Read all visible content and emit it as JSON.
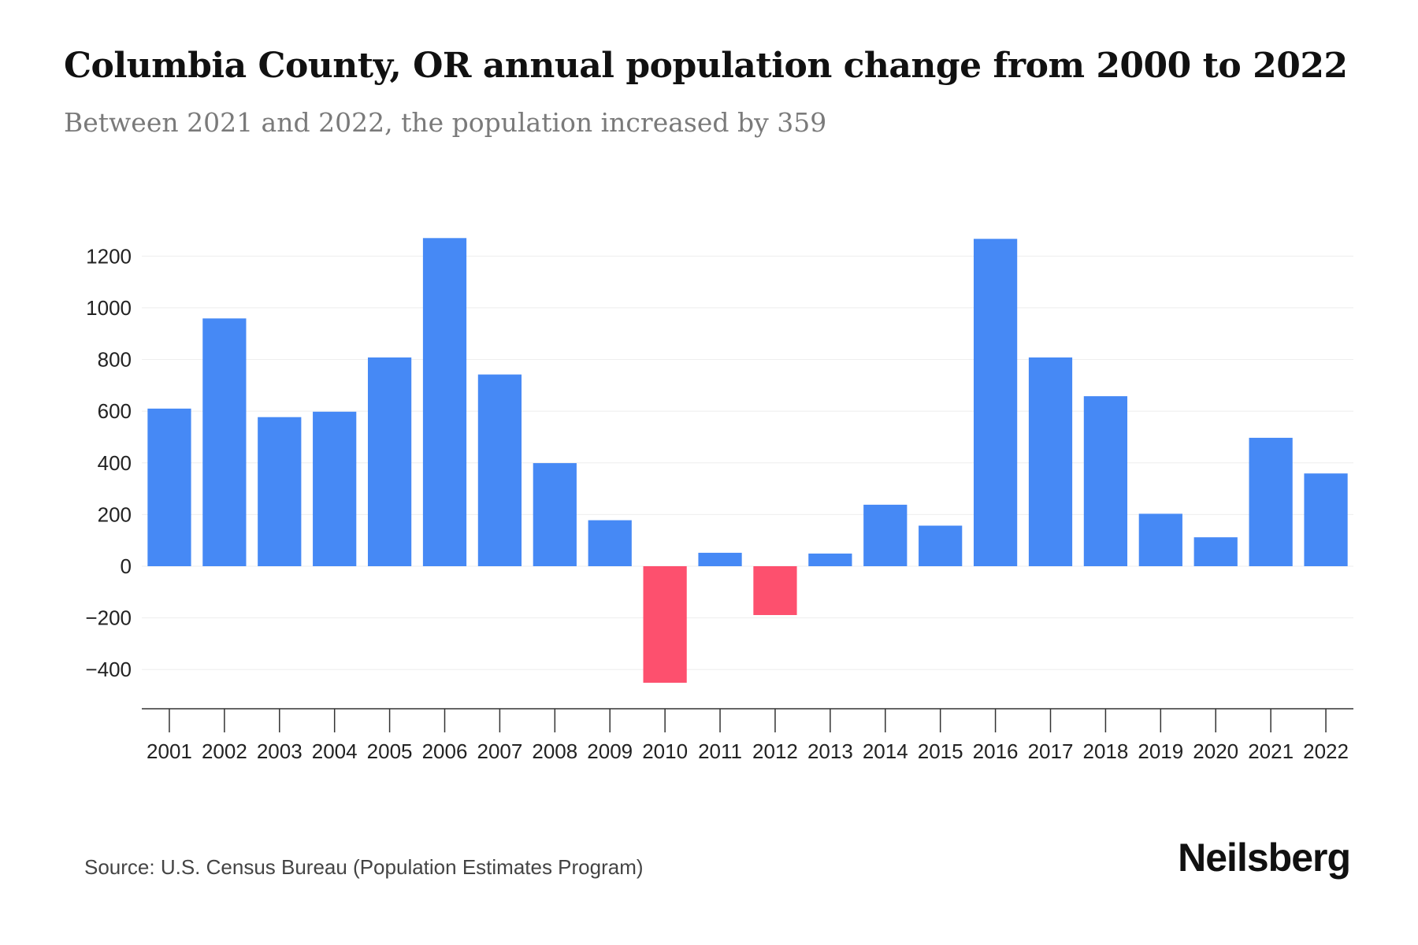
{
  "chart_data": {
    "type": "bar",
    "title": "Columbia County, OR annual population change from 2000 to 2022",
    "subtitle": "Between 2021 and 2022, the population increased by 359",
    "xlabel": "",
    "ylabel": "",
    "categories": [
      "2001",
      "2002",
      "2003",
      "2004",
      "2005",
      "2006",
      "2007",
      "2008",
      "2009",
      "2010",
      "2011",
      "2012",
      "2013",
      "2014",
      "2015",
      "2016",
      "2017",
      "2018",
      "2019",
      "2020",
      "2021",
      "2022"
    ],
    "values": [
      610,
      959,
      577,
      598,
      808,
      1270,
      742,
      399,
      178,
      -451,
      52,
      -189,
      49,
      238,
      157,
      1267,
      808,
      658,
      203,
      112,
      497,
      359
    ],
    "ylim": [
      -550,
      1300
    ],
    "yticks": [
      -400,
      -200,
      0,
      200,
      400,
      600,
      800,
      1000,
      1200
    ],
    "ytick_labels": [
      "−400",
      "−200",
      "0",
      "200",
      "400",
      "600",
      "800",
      "1000",
      "1200"
    ],
    "grid": true,
    "colors": {
      "positive": "#4689f5",
      "negative": "#fd506e"
    }
  },
  "source": "Source: U.S. Census Bureau (Population Estimates Program)",
  "logo": "Neilsberg"
}
